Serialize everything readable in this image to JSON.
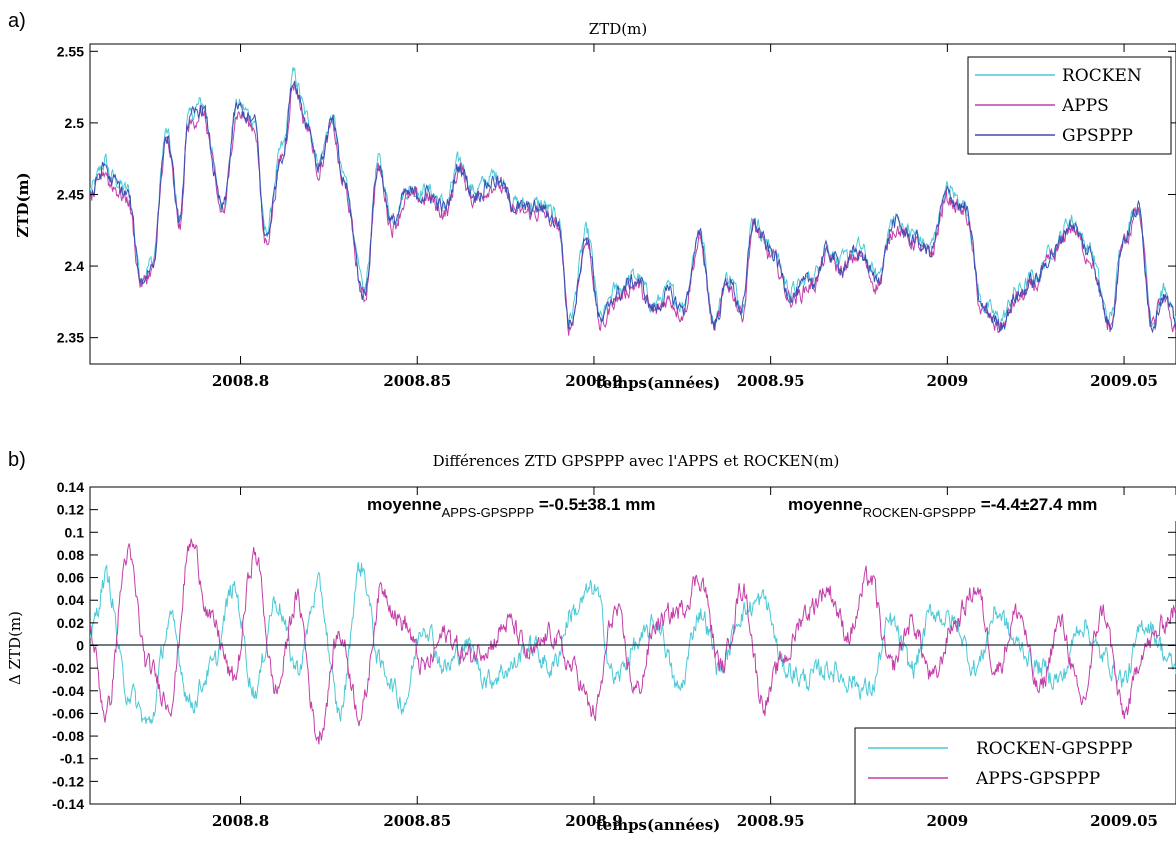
{
  "chart_data": [
    {
      "panel_label": "a)",
      "type": "line",
      "title": "ZTD(m)",
      "xlabel": "temps(années)",
      "ylabel": "ZTD(m)",
      "xlim": [
        2008.7574,
        2009.0647
      ],
      "ylim": [
        2.3316,
        2.5551
      ],
      "xticks": [
        2008.8,
        2008.85,
        2008.9,
        2008.95,
        2009,
        2009.05
      ],
      "xtick_labels": [
        "2008.8",
        "2008.85",
        "2008.9",
        "2008.95",
        "2009",
        "2009.05"
      ],
      "yticks": [
        2.35,
        2.4,
        2.45,
        2.5,
        2.55
      ],
      "ytick_labels": [
        "2.35",
        "2.4",
        "2.45",
        "2.5",
        "2.55"
      ],
      "legend_position": "top-right",
      "series": [
        {
          "name": "ROCKEN",
          "color": "#4cc9d6",
          "offset": 0.003
        },
        {
          "name": "APPS",
          "color": "#c33fa8",
          "offset": -0.003
        },
        {
          "name": "GPSPPP",
          "color": "#3b4fb3",
          "offset": 0
        }
      ],
      "x": [
        2008.7574,
        2008.762,
        2008.763,
        2008.768,
        2008.772,
        2008.775,
        2008.779,
        2008.783,
        2008.785,
        2008.789,
        2008.795,
        2008.799,
        2008.804,
        2008.807,
        2008.812,
        2008.815,
        2008.819,
        2008.822,
        2008.826,
        2008.829,
        2008.835,
        2008.839,
        2008.843,
        2008.847,
        2008.853,
        2008.858,
        2008.862,
        2008.866,
        2008.872,
        2008.879,
        2008.885,
        2008.89,
        2008.893,
        2008.898,
        2008.902,
        2008.906,
        2008.912,
        2008.917,
        2008.921,
        2008.925,
        2008.93,
        2008.934,
        2008.938,
        2008.942,
        2008.945,
        2008.95,
        2008.956,
        2008.962,
        2008.966,
        2008.97,
        2008.975,
        2008.98,
        2008.985,
        2008.99,
        2008.995,
        2009.0,
        2009.005,
        2009.01,
        2009.015,
        2009.02,
        2009.025,
        2009.03,
        2009.035,
        2009.04,
        2009.046,
        2009.05,
        2009.054,
        2009.058,
        2009.061,
        2009.0647
      ],
      "y": [
        2.45,
        2.47,
        2.46,
        2.45,
        2.39,
        2.4,
        2.49,
        2.43,
        2.5,
        2.51,
        2.44,
        2.51,
        2.5,
        2.42,
        2.48,
        2.53,
        2.5,
        2.47,
        2.5,
        2.46,
        2.38,
        2.47,
        2.43,
        2.45,
        2.45,
        2.44,
        2.47,
        2.45,
        2.46,
        2.44,
        2.44,
        2.43,
        2.36,
        2.42,
        2.36,
        2.38,
        2.39,
        2.37,
        2.38,
        2.37,
        2.42,
        2.36,
        2.39,
        2.37,
        2.43,
        2.41,
        2.38,
        2.39,
        2.41,
        2.4,
        2.41,
        2.39,
        2.43,
        2.42,
        2.41,
        2.45,
        2.44,
        2.37,
        2.36,
        2.38,
        2.39,
        2.41,
        2.43,
        2.41,
        2.36,
        2.42,
        2.44,
        2.36,
        2.38,
        2.36
      ]
    },
    {
      "panel_label": "b)",
      "type": "line",
      "title": "Différences ZTD GPSPPP avec l'APPS et ROCKEN(m)",
      "xlabel": "temps(années)",
      "ylabel": "Δ ZTD(m)",
      "xlim": [
        2008.7574,
        2009.0647
      ],
      "ylim": [
        -0.14,
        0.14
      ],
      "xticks": [
        2008.8,
        2008.85,
        2008.9,
        2008.95,
        2009,
        2009.05
      ],
      "xtick_labels": [
        "2008.8",
        "2008.85",
        "2008.9",
        "2008.95",
        "2009",
        "2009.05"
      ],
      "yticks": [
        -0.14,
        -0.12,
        -0.1,
        -0.08,
        -0.06,
        -0.04,
        -0.02,
        0,
        0.02,
        0.04,
        0.06,
        0.08,
        0.1,
        0.12,
        0.14
      ],
      "ytick_labels": [
        "-0.14",
        "-0.12",
        "-0.1",
        "-0.08",
        "-0.06",
        "-0.04",
        "-0.02",
        "0",
        "0.02",
        "0.04",
        "0.06",
        "0.08",
        "0.1",
        "0.12",
        "0.14"
      ],
      "legend_position": "bottom-right",
      "annotations": [
        {
          "base": "moyenne",
          "sub": "APPS-GPSPPP",
          "text": " =-0.5±38.1 mm"
        },
        {
          "base": "moyenne",
          "sub": "ROCKEN-GPSPPP",
          "text": " =-4.4±27.4 mm"
        }
      ],
      "x": [
        2008.7574,
        2008.762,
        2008.768,
        2008.774,
        2008.78,
        2008.786,
        2008.792,
        2008.798,
        2008.804,
        2008.81,
        2008.816,
        2008.822,
        2008.828,
        2008.834,
        2008.84,
        2008.846,
        2008.852,
        2008.858,
        2008.864,
        2008.87,
        2008.876,
        2008.882,
        2008.888,
        2008.894,
        2008.9,
        2008.906,
        2008.912,
        2008.918,
        2008.924,
        2008.93,
        2008.936,
        2008.942,
        2008.948,
        2008.954,
        2008.96,
        2008.966,
        2008.972,
        2008.978,
        2008.984,
        2008.99,
        2008.996,
        2009.002,
        2009.008,
        2009.014,
        2009.02,
        2009.026,
        2009.032,
        2009.038,
        2009.044,
        2009.05,
        2009.056,
        2009.0647
      ],
      "series": [
        {
          "name": "ROCKEN-GPSPPP",
          "color": "#4cc9d6",
          "values": [
            0.01,
            0.06,
            -0.04,
            -0.07,
            0.02,
            -0.05,
            -0.02,
            0.05,
            -0.04,
            0.04,
            -0.02,
            0.05,
            -0.06,
            0.07,
            -0.02,
            -0.05,
            0.02,
            -0.02,
            0.0,
            -0.03,
            -0.02,
            0.0,
            -0.02,
            0.03,
            0.05,
            -0.03,
            0.0,
            0.02,
            -0.04,
            0.03,
            -0.02,
            0.03,
            0.04,
            -0.02,
            -0.03,
            -0.02,
            -0.03,
            -0.04,
            0.02,
            -0.02,
            0.03,
            0.02,
            -0.02,
            0.03,
            0.0,
            -0.02,
            -0.03,
            0.02,
            -0.01,
            -0.03,
            0.02,
            -0.02
          ]
        },
        {
          "name": "APPS-GPSPPP",
          "color": "#c33fa8",
          "values": [
            0.01,
            -0.06,
            0.08,
            -0.02,
            -0.05,
            0.09,
            0.02,
            -0.03,
            0.08,
            -0.04,
            0.04,
            -0.08,
            0.01,
            -0.06,
            0.05,
            0.02,
            -0.02,
            0.01,
            -0.01,
            0.0,
            0.02,
            -0.01,
            0.01,
            -0.02,
            -0.06,
            0.03,
            -0.04,
            0.02,
            0.03,
            0.06,
            -0.02,
            0.05,
            -0.05,
            -0.01,
            0.03,
            0.05,
            0.01,
            0.06,
            -0.02,
            0.02,
            -0.03,
            0.02,
            0.05,
            -0.02,
            0.03,
            -0.04,
            0.02,
            -0.05,
            0.03,
            -0.06,
            0.0,
            0.03
          ]
        }
      ]
    }
  ]
}
